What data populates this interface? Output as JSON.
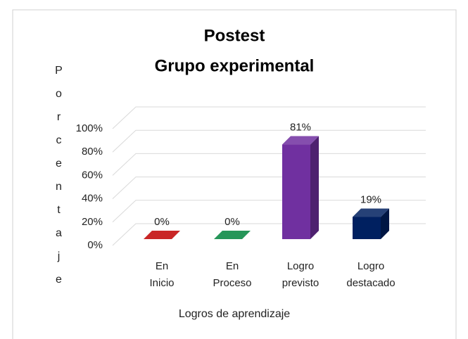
{
  "chart_data": {
    "type": "bar3d",
    "title": "Postest",
    "subtitle": "Grupo experimental",
    "y_label": "Porcentaje",
    "x_label": "Logros de aprendizaje",
    "categories": [
      "En Inicio",
      "En Proceso",
      "Logro previsto",
      "Logro destacado"
    ],
    "values": [
      0,
      0,
      81,
      19
    ],
    "value_labels": [
      "0%",
      "0%",
      "81%",
      "19%"
    ],
    "colors": [
      "#c00000",
      "#00843d",
      "#7030a0",
      "#002060"
    ],
    "ylim": [
      0,
      100
    ],
    "yticks": [
      {
        "value": 0,
        "label": "0%"
      },
      {
        "value": 20,
        "label": "20%"
      },
      {
        "value": 40,
        "label": "40%"
      },
      {
        "value": 60,
        "label": "60%"
      },
      {
        "value": 80,
        "label": "80%"
      },
      {
        "value": 100,
        "label": "100%"
      }
    ],
    "grid": true
  }
}
